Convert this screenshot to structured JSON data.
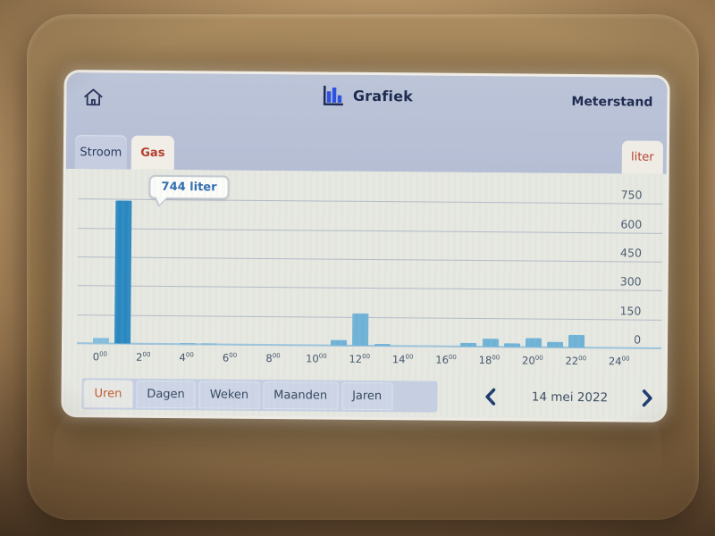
{
  "header": {
    "title": "Grafiek",
    "right_link": "Meterstand",
    "home_icon": "home-icon",
    "title_icon": "bar-chart-icon"
  },
  "energy_tabs": {
    "items": [
      {
        "label": "Stroom",
        "active": false
      },
      {
        "label": "Gas",
        "active": true
      }
    ],
    "unit_tab": "liter"
  },
  "tooltip": {
    "label": "744 liter"
  },
  "chart_data": {
    "type": "bar",
    "title": "Grafiek - Gas - Uren",
    "ylabel": "liter",
    "x_hours": [
      0,
      1,
      2,
      3,
      4,
      5,
      6,
      7,
      8,
      9,
      10,
      11,
      12,
      13,
      14,
      15,
      16,
      17,
      18,
      19,
      20,
      21,
      22,
      23
    ],
    "values": [
      30,
      744,
      0,
      0,
      4,
      6,
      0,
      0,
      0,
      0,
      0,
      30,
      165,
      10,
      0,
      0,
      0,
      20,
      40,
      18,
      45,
      30,
      65,
      0
    ],
    "x_tick_hours": [
      0,
      2,
      4,
      6,
      8,
      10,
      12,
      14,
      16,
      18,
      20,
      22,
      24
    ],
    "x_tick_suffix": "00",
    "y_ticks": [
      0,
      150,
      300,
      450,
      600,
      750
    ],
    "ylim": [
      0,
      900
    ],
    "grid": true,
    "legend": "none",
    "highlight_hour": 1,
    "highlight_value": 744,
    "highlight_label": "744 liter",
    "colors": {
      "bar": "#6fb2d7",
      "bar_first": "#85bedd",
      "bar_highlight": "#2a88c1",
      "gridline": "#b3bac8",
      "baseline": "#9cc4dc",
      "accent_red": "#b33f2f",
      "accent_orange": "#c0572c",
      "header_bg": "#b9c1d6",
      "panel_bg": "#e6e8e1",
      "navy_text": "#1f2c50"
    }
  },
  "period_tabs": [
    {
      "label": "Uren",
      "active": true
    },
    {
      "label": "Dagen",
      "active": false
    },
    {
      "label": "Weken",
      "active": false
    },
    {
      "label": "Maanden",
      "active": false
    },
    {
      "label": "Jaren",
      "active": false
    }
  ],
  "date_nav": {
    "prev_icon": "chevron-left-icon",
    "date": "14 mei 2022",
    "next_icon": "chevron-right-icon"
  }
}
